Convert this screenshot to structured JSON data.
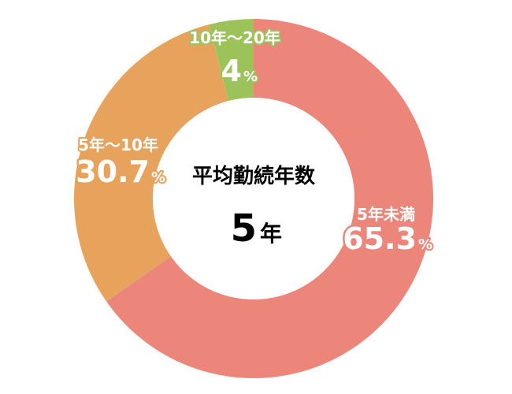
{
  "chart_data": {
    "type": "pie",
    "variant": "donut",
    "center": {
      "title": "平均勤続年数",
      "value": "5",
      "unit": "年"
    },
    "slices": [
      {
        "category": "5年未満",
        "value": 65.3,
        "value_text": "65.3",
        "unit": "%",
        "color": "#ec857a"
      },
      {
        "category": "5年～10年",
        "value": 30.7,
        "value_text": "30.7",
        "unit": "%",
        "color": "#e7a35c"
      },
      {
        "category": "10年～20年",
        "value": 4,
        "value_text": "4",
        "unit": "%",
        "color": "#9cc35a"
      }
    ]
  }
}
